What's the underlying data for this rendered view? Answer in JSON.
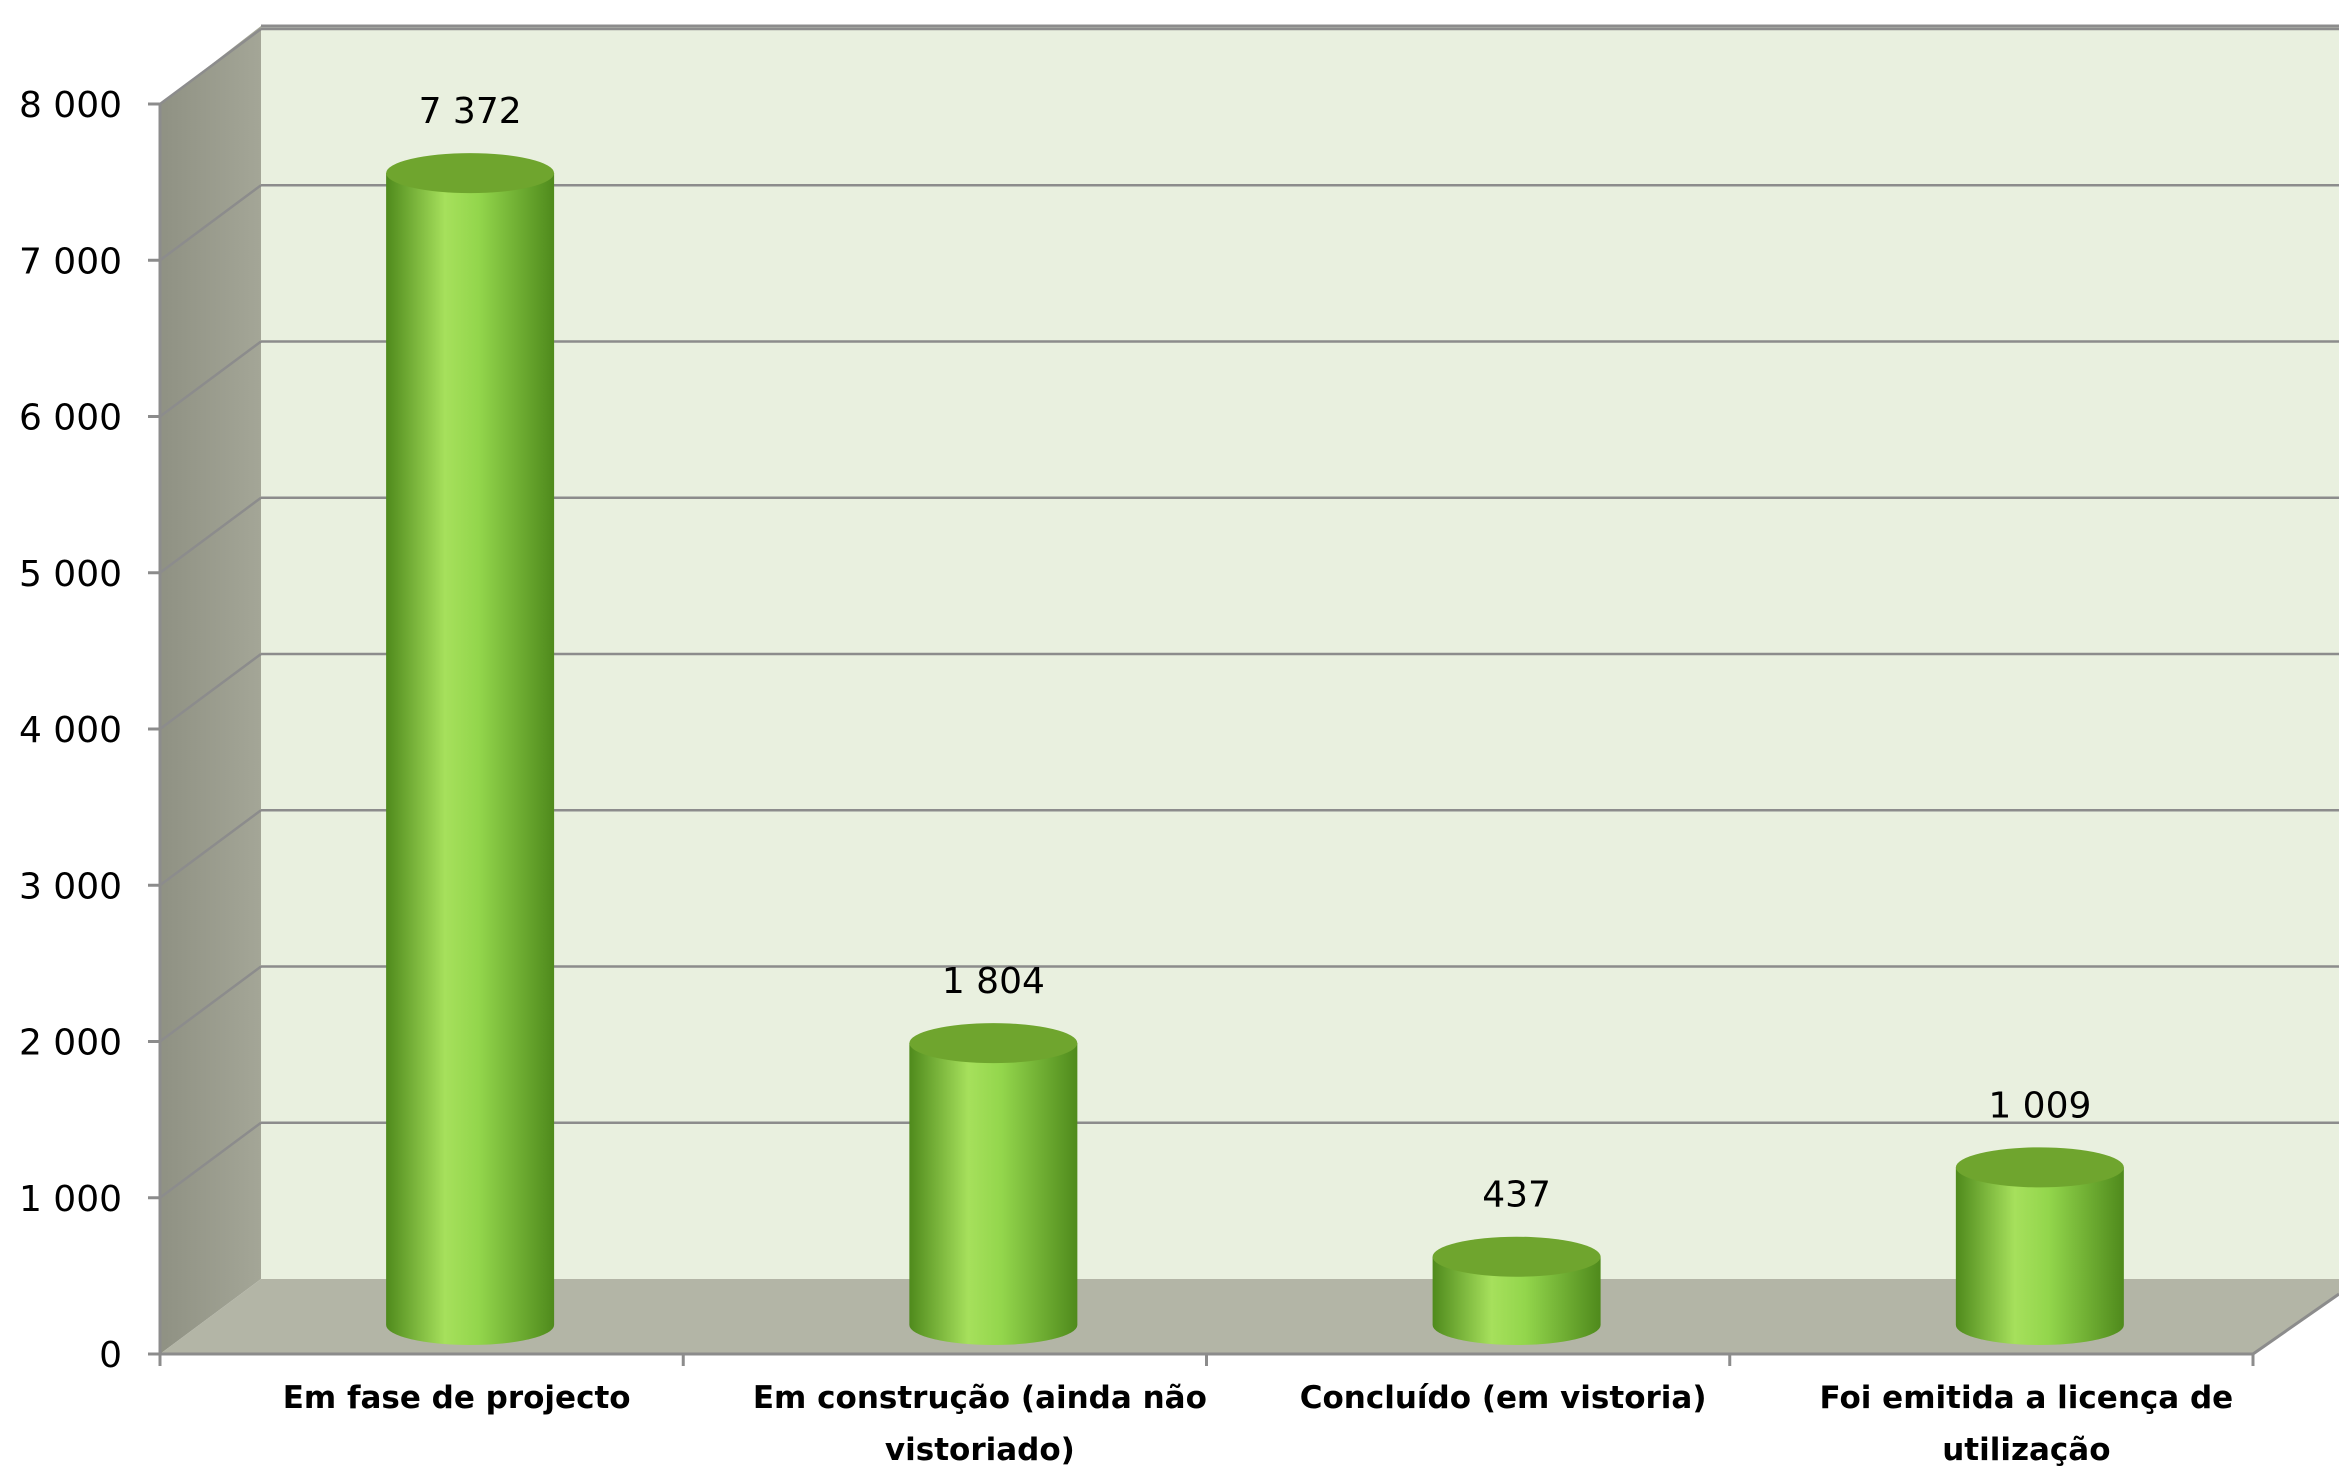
{
  "chart_data": {
    "type": "bar",
    "style": "3d-cylinder",
    "categories": [
      "Em fase de projecto",
      "Em construção (ainda não vistoriado)",
      "Concluído (em vistoria)",
      "Foi emitida a licença de utilização"
    ],
    "category_lines": [
      [
        "Em fase de projecto"
      ],
      [
        "Em construção (ainda não",
        "vistoriado)"
      ],
      [
        "Concluído (em vistoria)"
      ],
      [
        "Foi emitida a licença de",
        "utilização"
      ]
    ],
    "values": [
      7372,
      1804,
      437,
      1009
    ],
    "value_labels": [
      "7 372",
      "1 804",
      "437",
      "1 009"
    ],
    "ylim": [
      0,
      8000
    ],
    "yticks": [
      0,
      1000,
      2000,
      3000,
      4000,
      5000,
      6000,
      7000,
      8000
    ],
    "ytick_labels": [
      "0",
      "1 000",
      "2 000",
      "3 000",
      "4 000",
      "5 000",
      "6 000",
      "7 000",
      "8 000"
    ],
    "title": "",
    "xlabel": "",
    "ylabel": "",
    "grid": true,
    "legend": "none",
    "colors": {
      "bar": "#8ccd40",
      "bar_dark": "#4f8a1c",
      "bar_light": "#a6e05c",
      "back_wall": "#e9f0df",
      "side_wall": "#999b8c",
      "floor": "#b3b5a6",
      "grid": "#8c8c8c"
    }
  }
}
